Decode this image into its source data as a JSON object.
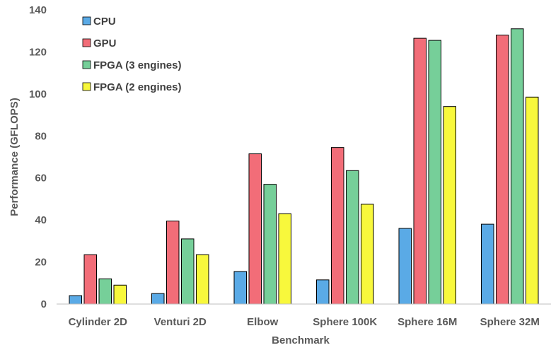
{
  "chart_data": {
    "type": "bar",
    "categories": [
      "Cylinder 2D",
      "Venturi 2D",
      "Elbow",
      "Sphere 100K",
      "Sphere 16M",
      "Sphere 32M"
    ],
    "series": [
      {
        "name": "CPU",
        "color": "#5aaae6",
        "values": [
          4,
          5,
          15.5,
          11.5,
          36,
          38
        ]
      },
      {
        "name": "GPU",
        "color": "#f26d78",
        "values": [
          23.5,
          39.5,
          71.5,
          74.5,
          126.5,
          128
        ]
      },
      {
        "name": "FPGA (3 engines)",
        "color": "#76cf99",
        "values": [
          12,
          31,
          57,
          63.5,
          125.5,
          131
        ]
      },
      {
        "name": "FPGA (2 engines)",
        "color": "#f8f83c",
        "values": [
          9,
          23.5,
          43,
          47.5,
          94,
          98.5
        ]
      }
    ],
    "xlabel": "Benchmark",
    "ylabel": "Performance (GFLOPS)",
    "ylim": [
      0,
      140
    ],
    "yticks": [
      0,
      20,
      40,
      60,
      80,
      100,
      120,
      140
    ],
    "grid": false,
    "legend_position": "top-left"
  }
}
